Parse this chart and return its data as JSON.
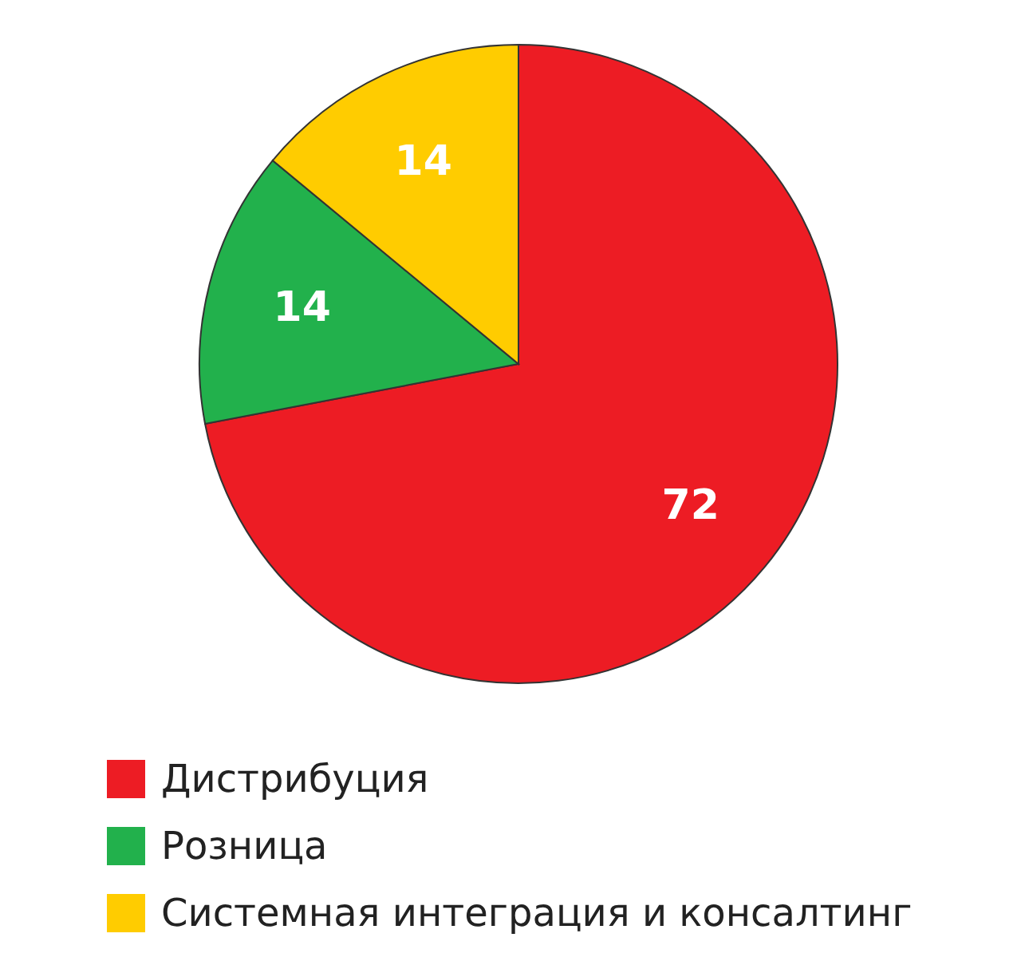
{
  "chart_data": {
    "type": "pie",
    "categories": [
      "Дистрибуция",
      "Розница",
      "Системная интеграция и консалтинг"
    ],
    "values": [
      72,
      14,
      14
    ],
    "colors": [
      "#ed1c24",
      "#22b14c",
      "#ffcc00"
    ],
    "data_labels": true,
    "legend": "bottom left"
  }
}
